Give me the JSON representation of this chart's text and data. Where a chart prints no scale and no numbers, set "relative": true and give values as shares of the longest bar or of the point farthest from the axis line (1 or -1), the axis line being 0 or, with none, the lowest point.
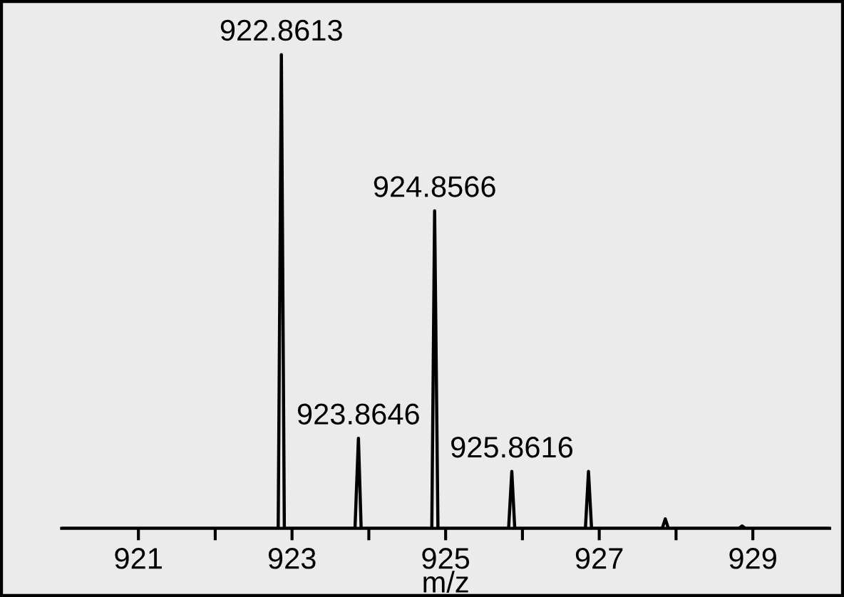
{
  "chart_data": {
    "type": "line",
    "xlabel": "m/z",
    "relative": true,
    "xlim": [
      920,
      930
    ],
    "xticks": [
      921,
      {
        "value": 922,
        "label": null
      },
      923,
      {
        "value": 924,
        "label": null
      },
      925,
      {
        "value": 926,
        "label": null
      },
      927,
      {
        "value": 928,
        "label": null
      },
      929
    ],
    "series": [
      {
        "color": "#000000",
        "x": [
          920,
          922.82,
          922.8613,
          922.9,
          923.82,
          923.8646,
          923.9,
          924.82,
          924.8566,
          924.9,
          925.82,
          925.8616,
          925.9,
          926.82,
          926.86,
          926.9,
          927.82,
          927.86,
          927.9,
          928.82,
          928.86,
          928.9,
          930
        ],
        "values": [
          0,
          0,
          1,
          0,
          0,
          0.19,
          0,
          0,
          0.67,
          0,
          0,
          0.12,
          0,
          0,
          0.12,
          0,
          0,
          0.02,
          0,
          0,
          0.005,
          0,
          0
        ]
      }
    ],
    "annotations": [
      {
        "text": "922.8613",
        "x": 922.8613,
        "y": 1
      },
      {
        "text": "923.8646",
        "x": 923.8646,
        "y": 0.19
      },
      {
        "text": "924.8566",
        "x": 924.8566,
        "y": 0.67
      },
      {
        "text": "925.8616",
        "x": 925.8616,
        "y": 0.12
      }
    ],
    "grid": false,
    "legend": false,
    "tick_labels": "x"
  }
}
